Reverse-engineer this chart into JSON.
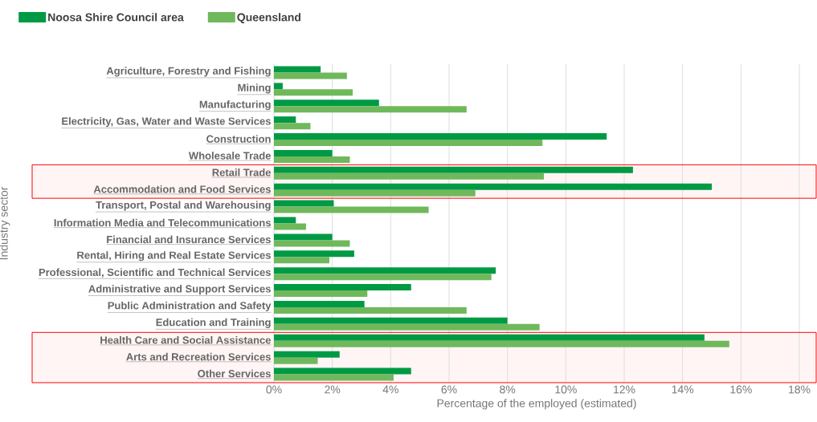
{
  "chart_data": {
    "type": "bar",
    "orientation": "horizontal",
    "xlabel": "Percentage of the employed (estimated)",
    "ylabel": "Industry sector",
    "categories": [
      "Agriculture, Forestry and Fishing",
      "Mining",
      "Manufacturing",
      "Electricity, Gas, Water and Waste Services",
      "Construction",
      "Wholesale Trade",
      "Retail Trade",
      "Accommodation and Food Services",
      "Transport, Postal and Warehousing",
      "Information Media and Telecommunications",
      "Financial and Insurance Services",
      "Rental, Hiring and Real Estate Services",
      "Professional, Scientific and Technical Services",
      "Administrative and Support Services",
      "Public Administration and Safety",
      "Education and Training",
      "Health Care and Social Assistance",
      "Arts and Recreation Services",
      "Other Services"
    ],
    "series": [
      {
        "name": "Noosa Shire Council area",
        "color": "#009a44",
        "values": [
          1.6,
          0.3,
          3.6,
          0.75,
          11.4,
          2.0,
          12.3,
          15.0,
          2.05,
          0.75,
          2.0,
          2.75,
          7.6,
          4.7,
          3.1,
          8.0,
          14.75,
          2.25,
          4.7
        ]
      },
      {
        "name": "Queensland",
        "color": "#70b85c",
        "values": [
          2.5,
          2.7,
          6.6,
          1.25,
          9.2,
          2.6,
          9.25,
          6.9,
          5.3,
          1.1,
          2.6,
          1.9,
          7.45,
          3.2,
          6.6,
          9.1,
          15.6,
          1.5,
          4.1
        ]
      }
    ],
    "xlim": [
      0,
      18
    ],
    "xticks": [
      {
        "value": 0,
        "label": "0%"
      },
      {
        "value": 2,
        "label": "2%"
      },
      {
        "value": 4,
        "label": "4%"
      },
      {
        "value": 6,
        "label": "6%"
      },
      {
        "value": 8,
        "label": "8%"
      },
      {
        "value": 10,
        "label": "10%"
      },
      {
        "value": 12,
        "label": "12%"
      },
      {
        "value": 14,
        "label": "14%"
      },
      {
        "value": 16,
        "label": "16%"
      },
      {
        "value": 18,
        "label": "18%"
      }
    ],
    "grid": "x",
    "legend": "top left",
    "bands": [
      {
        "axis": "y",
        "from": "Retail Trade",
        "to": "Accommodation and Food Services"
      },
      {
        "axis": "y",
        "from": "Health Care and Social Assistance",
        "to": "Other Services"
      }
    ]
  }
}
